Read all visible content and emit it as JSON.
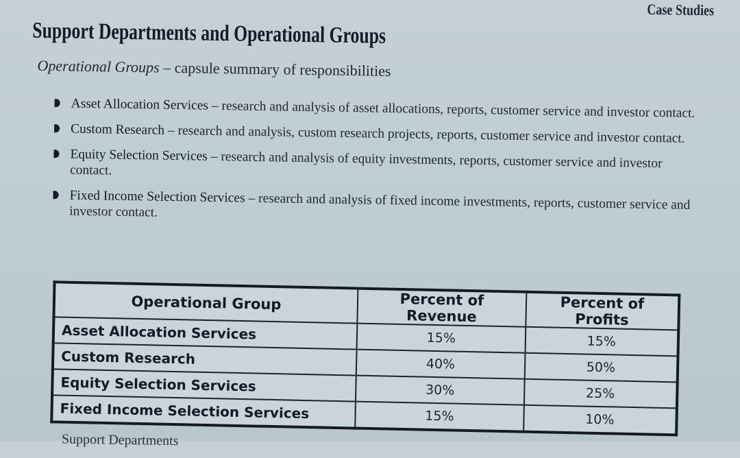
{
  "running_head": "Case Studies",
  "title": "Support Departments and Operational Groups",
  "subtitle": {
    "italic": "Operational Groups",
    "rest": " – capsule summary of responsibilities"
  },
  "bullets": [
    {
      "name": "Asset Allocation Services",
      "desc": " – research and analysis of asset allocations, reports, customer service and investor contact."
    },
    {
      "name": "Custom Research",
      "desc": " – research and analysis, custom research projects, reports, customer service and investor contact."
    },
    {
      "name": "Equity Selection Services",
      "desc": " – research and analysis of equity investments, reports, customer service and investor contact."
    },
    {
      "name": "Fixed Income Selection Services",
      "desc": " – research and analysis of fixed income investments, reports, customer service and investor contact."
    }
  ],
  "table": {
    "headers": [
      "Operational Group",
      "Percent of Revenue",
      "Percent of Profits"
    ],
    "rows": [
      [
        "Asset Allocation Services",
        "15%",
        "15%"
      ],
      [
        "Custom Research",
        "40%",
        "50%"
      ],
      [
        "Equity Selection Services",
        "30%",
        "25%"
      ],
      [
        "Fixed Income Selection Services",
        "15%",
        "10%"
      ]
    ]
  },
  "footer_stub": "Support Departments"
}
